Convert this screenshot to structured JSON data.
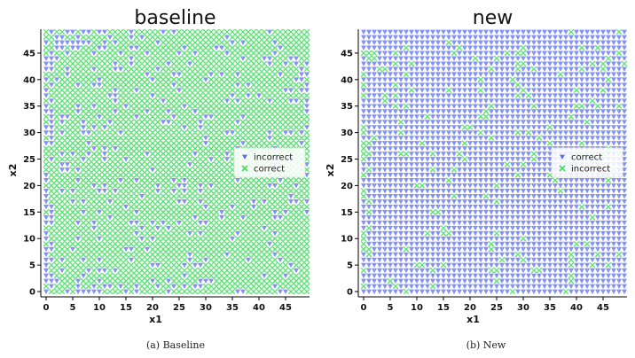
{
  "chart_data": [
    {
      "type": "scatter",
      "title": "baseline",
      "xlabel": "x1",
      "ylabel": "x2",
      "xlim": [
        0,
        49
      ],
      "ylim": [
        0,
        49
      ],
      "xticks": [
        "0",
        "5",
        "10",
        "15",
        "20",
        "25",
        "30",
        "35",
        "40",
        "45"
      ],
      "yticks": [
        "0",
        "5",
        "10",
        "15",
        "20",
        "25",
        "30",
        "35",
        "40",
        "45"
      ],
      "grid": "50x50 lattice, x1 and x2 in 0..49",
      "series": [
        {
          "name": "incorrect",
          "marker": "down-triangle",
          "color": "#5b6ef0",
          "share": 0.18
        },
        {
          "name": "correct",
          "marker": "x",
          "color": "#3ddc5a",
          "share": 0.82
        }
      ],
      "legend": "center-right",
      "caption": "(a) Baseline"
    },
    {
      "type": "scatter",
      "title": "new",
      "xlabel": "x1",
      "ylabel": "x2",
      "xlim": [
        0,
        49
      ],
      "ylim": [
        0,
        49
      ],
      "xticks": [
        "0",
        "5",
        "10",
        "15",
        "20",
        "25",
        "30",
        "35",
        "40",
        "45"
      ],
      "yticks": [
        "0",
        "5",
        "10",
        "15",
        "20",
        "25",
        "30",
        "35",
        "40",
        "45"
      ],
      "grid": "50x50 lattice, x1 and x2 in 0..49",
      "series": [
        {
          "name": "correct",
          "marker": "down-triangle",
          "color": "#5b6ef0",
          "share": 0.78
        },
        {
          "name": "incorrect",
          "marker": "x",
          "color": "#3ddc5a",
          "share": 0.22
        }
      ],
      "legend": "center-right",
      "caption": "(b) New"
    }
  ]
}
